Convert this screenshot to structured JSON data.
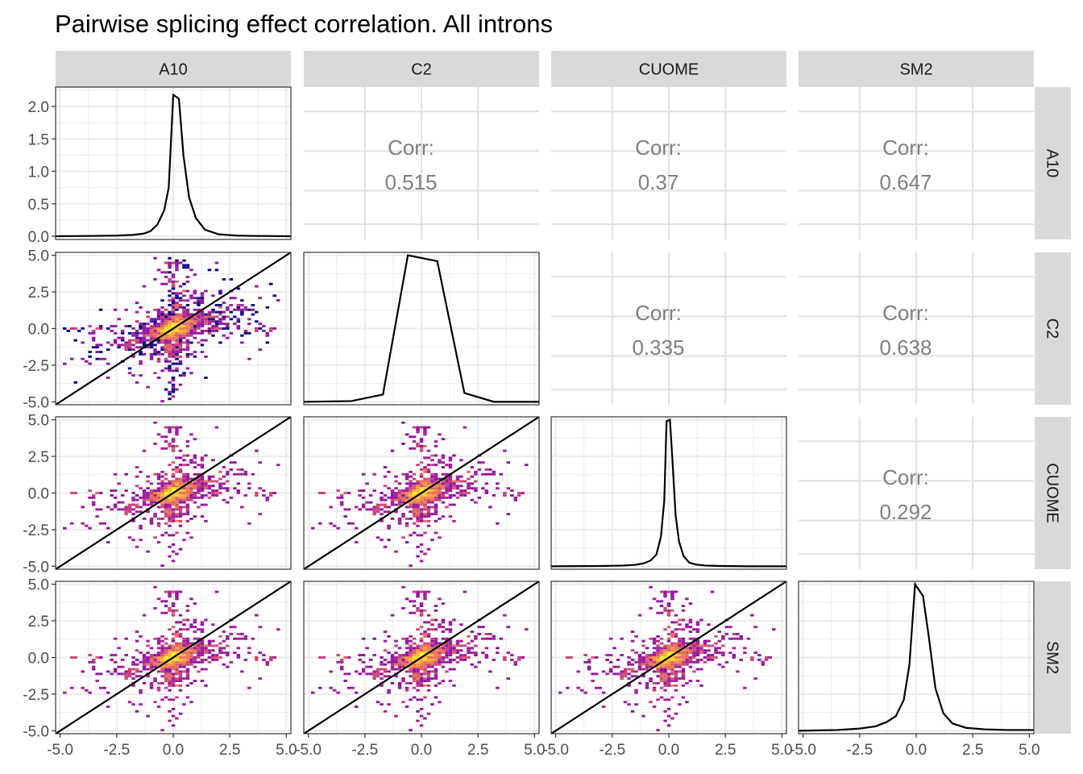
{
  "chart_data": {
    "type": "scatter",
    "subtype": "pairwise scatterplot matrix (hexbin density below diagonal, density curves on diagonal, correlation text above diagonal)",
    "title": "Pairwise splicing effect correlation. All introns",
    "variables": [
      "A10",
      "C2",
      "CUOME",
      "SM2"
    ],
    "xlim": [
      -5.2,
      5.2
    ],
    "ylim": [
      -5.2,
      5.2
    ],
    "ticks": [
      -5.0,
      -2.5,
      0.0,
      2.5,
      5.0
    ],
    "tick_labels": [
      "-5.0",
      "-2.5",
      "0.0",
      "2.5",
      "5.0"
    ],
    "first_row_ylim": [
      -0.05,
      2.3
    ],
    "first_row_ticks": [
      0.0,
      0.5,
      1.0,
      1.5,
      2.0
    ],
    "first_row_tick_labels": [
      "0.0",
      "0.5",
      "1.0",
      "1.5",
      "2.0"
    ],
    "correlation_label": "Corr:",
    "correlations": [
      {
        "x": "C2",
        "y": "A10",
        "value": "0.515"
      },
      {
        "x": "CUOME",
        "y": "A10",
        "value": "0.37"
      },
      {
        "x": "SM2",
        "y": "A10",
        "value": "0.647"
      },
      {
        "x": "CUOME",
        "y": "C2",
        "value": "0.335"
      },
      {
        "x": "SM2",
        "y": "C2",
        "value": "0.638"
      },
      {
        "x": "SM2",
        "y": "CUOME",
        "value": "0.292"
      }
    ],
    "diagonal_densities": [
      {
        "variable": "A10",
        "x": [
          -5.2,
          -3.5,
          -2.5,
          -1.8,
          -1.3,
          -1.0,
          -0.7,
          -0.4,
          -0.2,
          0.0,
          0.25,
          0.45,
          0.7,
          1.0,
          1.4,
          2.0,
          2.8,
          3.5,
          5.2
        ],
        "y": [
          0.0,
          0.005,
          0.01,
          0.02,
          0.04,
          0.08,
          0.18,
          0.4,
          0.75,
          2.18,
          2.12,
          1.25,
          0.6,
          0.28,
          0.1,
          0.03,
          0.01,
          0.005,
          0.0
        ]
      },
      {
        "variable": "C2",
        "x": [
          -5.2,
          -3.1,
          -1.7,
          -0.6,
          0.7,
          1.9,
          3.2,
          5.2
        ],
        "y": [
          -5.0,
          -4.95,
          -4.5,
          5.0,
          4.6,
          -4.4,
          -5.0,
          -5.0
        ]
      },
      {
        "variable": "CUOME",
        "x": [
          -5.2,
          -3.0,
          -2.0,
          -1.5,
          -1.1,
          -0.8,
          -0.55,
          -0.35,
          -0.2,
          -0.1,
          0.05,
          0.15,
          0.3,
          0.45,
          0.65,
          0.9,
          1.2,
          1.6,
          2.3,
          3.5,
          5.2
        ],
        "y": [
          -5.0,
          -4.98,
          -4.95,
          -4.9,
          -4.8,
          -4.6,
          -4.2,
          -3.0,
          -0.5,
          4.9,
          5.0,
          2.5,
          -1.5,
          -3.3,
          -4.3,
          -4.75,
          -4.88,
          -4.95,
          -4.98,
          -5.0,
          -5.0
        ]
      },
      {
        "variable": "SM2",
        "x": [
          -5.2,
          -3.5,
          -2.5,
          -1.8,
          -1.3,
          -0.9,
          -0.55,
          -0.3,
          -0.05,
          0.3,
          0.55,
          0.85,
          1.2,
          1.6,
          2.2,
          3.0,
          4.0,
          5.2
        ],
        "y": [
          -5.0,
          -4.95,
          -4.85,
          -4.7,
          -4.4,
          -4.0,
          -2.9,
          -0.5,
          5.0,
          4.2,
          1.5,
          -2.1,
          -3.8,
          -4.5,
          -4.8,
          -4.9,
          -4.95,
          -4.95
        ]
      }
    ],
    "hexbin_panels": [
      {
        "x": "A10",
        "y": "C2",
        "identity_line": true
      },
      {
        "x": "A10",
        "y": "CUOME",
        "identity_line": true
      },
      {
        "x": "C2",
        "y": "CUOME",
        "identity_line": true
      },
      {
        "x": "A10",
        "y": "SM2",
        "identity_line": true
      },
      {
        "x": "C2",
        "y": "SM2",
        "identity_line": true
      },
      {
        "x": "CUOME",
        "y": "SM2",
        "identity_line": true
      }
    ],
    "hexbin_colormap": [
      "#0d0887",
      "#5c01a6",
      "#9c179e",
      "#cc4778",
      "#ed7953",
      "#fdb42f",
      "#f0f921"
    ],
    "grid": true
  },
  "colors": {
    "strip_bg": "#d9d9d9",
    "grid": "#ebebeb",
    "corr_grid": "#e0e0e0",
    "density_line": "#000000",
    "identity_line": "#000000",
    "panel_border": "#333333"
  }
}
